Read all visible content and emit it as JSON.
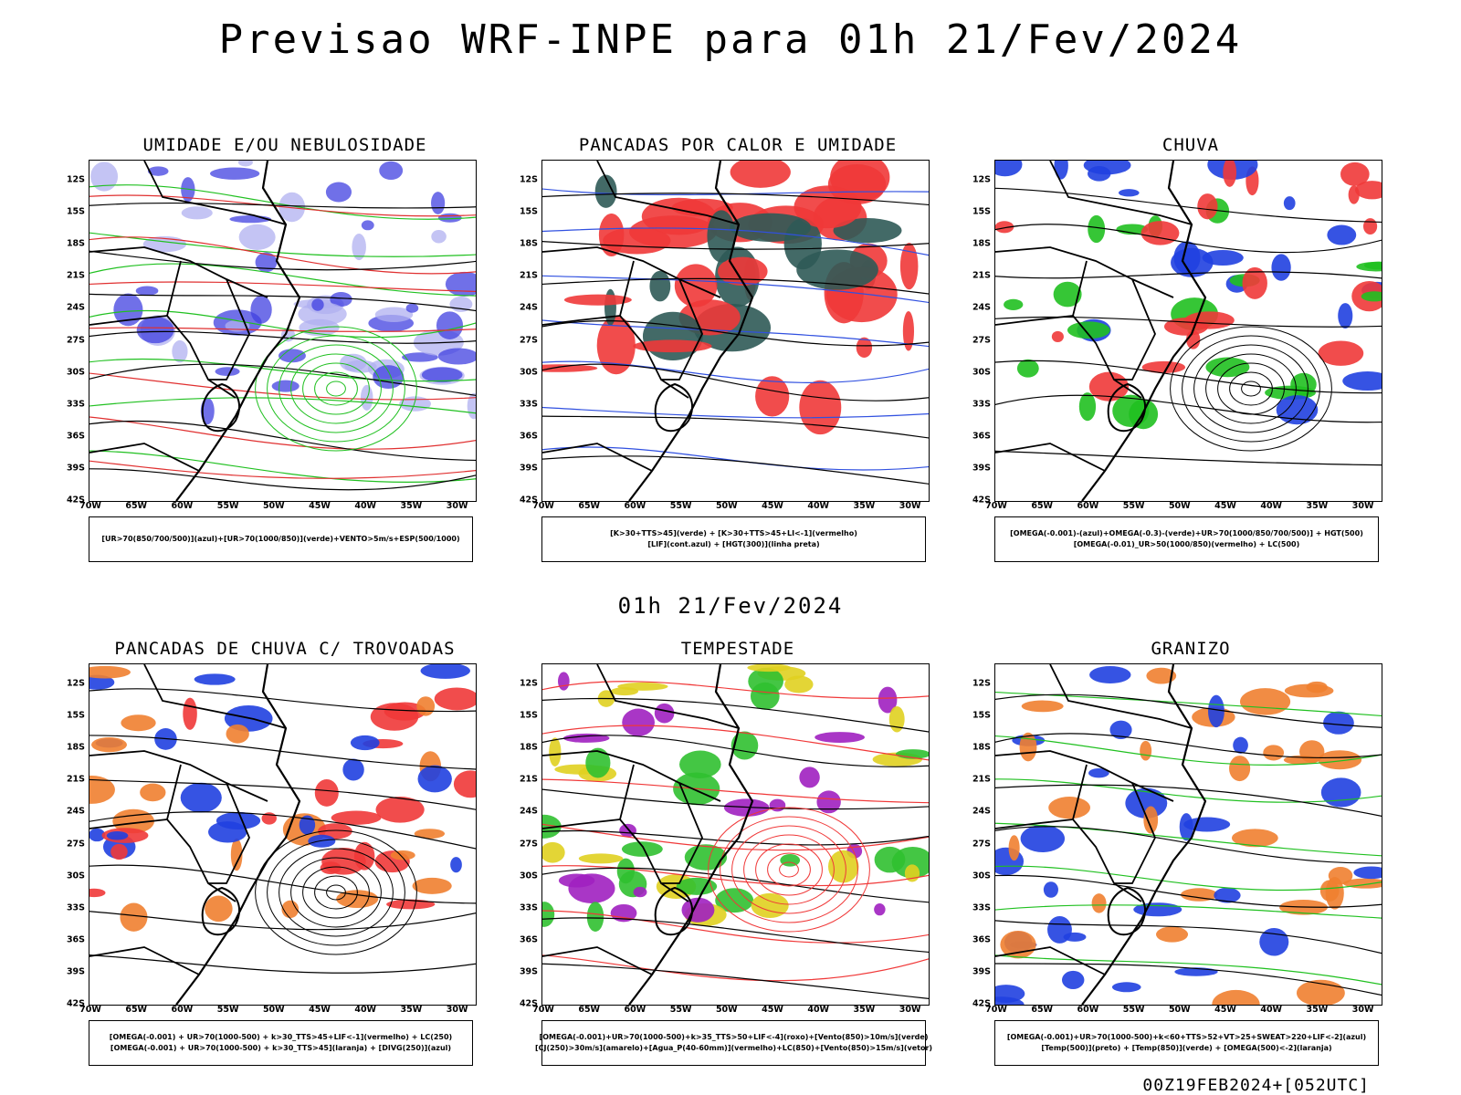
{
  "title": "Previsao WRF-INPE  para 01h 21/Fev/2024",
  "subtitle": "01h 21/Fev/2024",
  "footer": "00Z19FEB2024+[052UTC]",
  "lat_ticks": [
    "12S",
    "15S",
    "18S",
    "21S",
    "24S",
    "27S",
    "30S",
    "33S",
    "36S",
    "39S",
    "42S"
  ],
  "lon_ticks": [
    "70W",
    "65W",
    "60W",
    "55W",
    "50W",
    "45W",
    "40W",
    "35W",
    "30W"
  ],
  "panels": [
    {
      "title": "UMIDADE E/OU NEBULOSIDADE",
      "legend": [
        "[UR>70(850/700/500)](azul)+[UR>70(1000/850)](verde)+VENTO>5m/s+ESP(500/1000)"
      ],
      "colors": {
        "fill1": "#4040e0",
        "fill2": "#b0b0f0",
        "contour1": "#20c020",
        "contour2": "#e03030",
        "contour3": "#000000"
      }
    },
    {
      "title": "PANCADAS POR CALOR E UMIDADE",
      "legend": [
        "[K>30+TTS>45](verde) + [K>30+TTS>45+LI<-1](vermelho)",
        "[LIF](cont.azul) + [HGT(300)](linha preta)"
      ],
      "colors": {
        "fill1": "#f03838",
        "fill2": "#2f5a56",
        "contour1": "#3050e0",
        "contour2": "#000000"
      }
    },
    {
      "title": "CHUVA",
      "legend": [
        "[OMEGA(-0.001)-(azul)+OMEGA(-0.3)-(verde)+UR>70(1000/850/700/500)] + HGT(500)",
        "[OMEGA(-0.01)_UR>50(1000/850)(vermelho) + LC(500)"
      ],
      "colors": {
        "fill1": "#f03838",
        "fill2": "#2040e0",
        "fill3": "#20c020",
        "contour1": "#000000"
      }
    },
    {
      "title": "PANCADAS DE CHUVA C/ TROVOADAS",
      "legend": [
        "[OMEGA(-0.001) + UR>70(1000-500) + k>30_TTS>45+LIF<-1](vermelho) + LC(250)",
        "[OMEGA(-0.001) + UR>70(1000-500) + k>30_TTS>45](laranja) + [DIVG(250)](azul)"
      ],
      "colors": {
        "fill1": "#f03838",
        "fill2": "#f08030",
        "fill3": "#2040e0",
        "contour1": "#000000"
      }
    },
    {
      "title": "TEMPESTADE",
      "legend": [
        "[OMEGA(-0.001)+UR>70(1000-500)+k>35_TTS>50+LIF<-4](roxo)+[Vento(850)>10m/s](verde)",
        "[CJ(250)>30m/s](amarelo)+[Agua_P(40-60mm)](vermelho)+LC(850)+[Vento(850)>15m/s](vetor)"
      ],
      "colors": {
        "fill1": "#30c030",
        "fill2": "#e0d020",
        "fill3": "#a020c0",
        "contour1": "#f03838",
        "contour2": "#000000"
      }
    },
    {
      "title": "GRANIZO",
      "legend": [
        "[OMEGA(-0.001)+UR>70(1000-500)+k<60+TTS>52+VT>25+SWEAT>220+LIF<-2](azul)",
        "[Temp(500)](preto) + [Temp(850)](verde) + [OMEGA(500)<-2](laranja)"
      ],
      "colors": {
        "fill1": "#2040e0",
        "fill2": "#f08030",
        "contour1": "#20c020",
        "contour2": "#000000"
      }
    }
  ]
}
